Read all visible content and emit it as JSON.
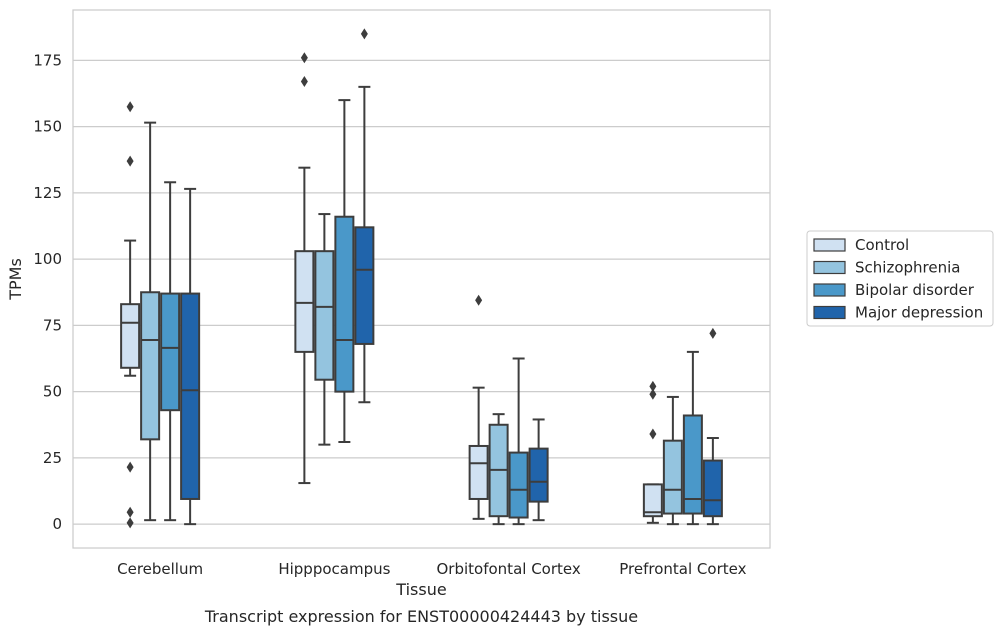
{
  "chart_data": {
    "type": "boxplot",
    "title": "",
    "caption": "Transcript expression for ENST00000424443 by tissue",
    "xlabel": "Tissue",
    "ylabel": "TPMs",
    "ylim": [
      -9,
      194
    ],
    "yticks": [
      0,
      25,
      50,
      75,
      100,
      125,
      150,
      175
    ],
    "grid": "horizontal",
    "legend_position": "right",
    "categories": [
      "Cerebellum",
      "Hipppocampus",
      "Orbitofontal Cortex",
      "Prefrontal Cortex"
    ],
    "series": [
      {
        "name": "Control",
        "color": "#d0e1f2",
        "boxes": [
          {
            "q1": 59,
            "median": 76,
            "q3": 83,
            "whisker_low": 56,
            "whisker_high": 107,
            "outliers": [
              157.5,
              137,
              21.5,
              4.5,
              0.5
            ]
          },
          {
            "q1": 65,
            "median": 83.5,
            "q3": 103,
            "whisker_low": 15.5,
            "whisker_high": 134.5,
            "outliers": [
              176,
              167
            ]
          },
          {
            "q1": 9.5,
            "median": 23,
            "q3": 29.5,
            "whisker_low": 2,
            "whisker_high": 51.5,
            "outliers": [
              84.5
            ]
          },
          {
            "q1": 3,
            "median": 4.5,
            "q3": 15,
            "whisker_low": 0.5,
            "whisker_high": 15,
            "outliers": [
              52,
              49,
              34
            ]
          }
        ]
      },
      {
        "name": "Schizophrenia",
        "color": "#94c4df",
        "boxes": [
          {
            "q1": 32,
            "median": 69.5,
            "q3": 87.5,
            "whisker_low": 1.5,
            "whisker_high": 151.5,
            "outliers": []
          },
          {
            "q1": 54.5,
            "median": 82,
            "q3": 103,
            "whisker_low": 30,
            "whisker_high": 117,
            "outliers": []
          },
          {
            "q1": 3,
            "median": 20.5,
            "q3": 37.5,
            "whisker_low": 0,
            "whisker_high": 41.5,
            "outliers": []
          },
          {
            "q1": 4,
            "median": 13,
            "q3": 31.5,
            "whisker_low": 0,
            "whisker_high": 48,
            "outliers": []
          }
        ]
      },
      {
        "name": "Bipolar disorder",
        "color": "#4a98c9",
        "boxes": [
          {
            "q1": 43,
            "median": 66.5,
            "q3": 87,
            "whisker_low": 1.5,
            "whisker_high": 129,
            "outliers": []
          },
          {
            "q1": 50,
            "median": 69.5,
            "q3": 116,
            "whisker_low": 31,
            "whisker_high": 160,
            "outliers": []
          },
          {
            "q1": 2.5,
            "median": 13,
            "q3": 27,
            "whisker_low": 0,
            "whisker_high": 62.5,
            "outliers": []
          },
          {
            "q1": 4,
            "median": 9.5,
            "q3": 41,
            "whisker_low": 0,
            "whisker_high": 65,
            "outliers": []
          }
        ]
      },
      {
        "name": "Major depression",
        "color": "#2064ab",
        "boxes": [
          {
            "q1": 9.5,
            "median": 50.5,
            "q3": 87,
            "whisker_low": 0,
            "whisker_high": 126.5,
            "outliers": []
          },
          {
            "q1": 68,
            "median": 96,
            "q3": 112,
            "whisker_low": 46,
            "whisker_high": 165,
            "outliers": [
              185
            ]
          },
          {
            "q1": 8.5,
            "median": 16,
            "q3": 28.5,
            "whisker_low": 1.5,
            "whisker_high": 39.5,
            "outliers": []
          },
          {
            "q1": 3,
            "median": 9,
            "q3": 24,
            "whisker_low": 0,
            "whisker_high": 32.5,
            "outliers": [
              72
            ]
          }
        ]
      }
    ]
  }
}
